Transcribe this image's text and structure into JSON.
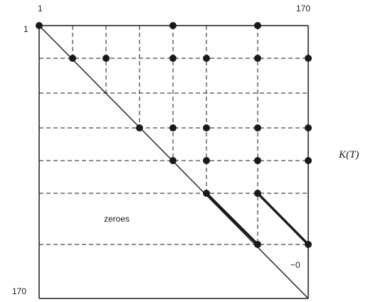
{
  "labels": {
    "top_left": "1",
    "top_right": "170",
    "left_top": "1",
    "left_bottom": "170",
    "region": "zeroes",
    "corner": "~0",
    "matrix": "K(T)"
  },
  "colors": {
    "ink": "#1a1a1a",
    "background": "#ffffff"
  }
}
